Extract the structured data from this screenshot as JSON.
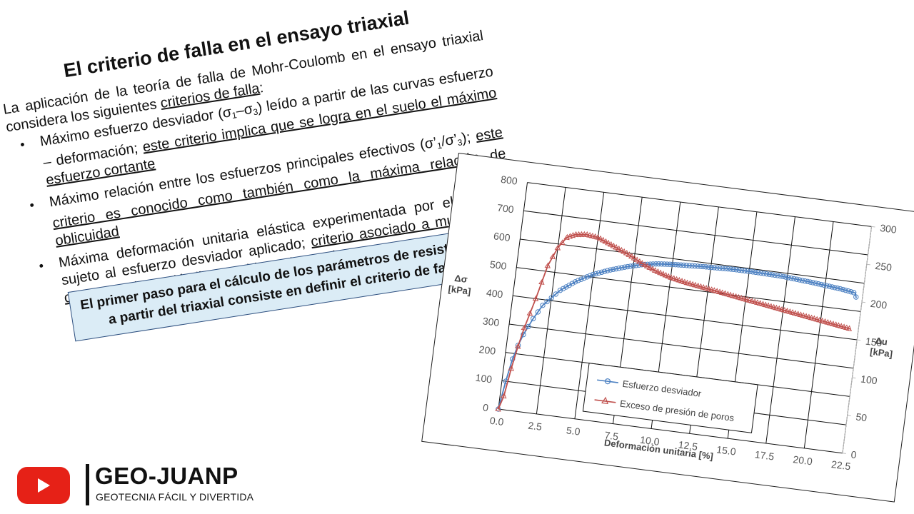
{
  "slide": {
    "title": "El criterio de falla en el ensayo triaxial",
    "intro": {
      "text": "La aplicación de la teoría de falla de Mohr-Coulomb en el ensayo triaxial considera los siguientes ",
      "underlined": "criterios de falla",
      "suffix": ":"
    },
    "bullets": [
      {
        "bullet": "•",
        "text_a": "Máximo esfuerzo desviador (σ",
        "sub1": "1",
        "text_b": "–σ",
        "sub2": "3",
        "text_c": ") leído a partir de las curvas esfuerzo – deformación; ",
        "underlined": "este criterio implica que se logra en el suelo el máximo esfuerzo cortante"
      },
      {
        "bullet": "•",
        "text_a": "Máximo relación entre los esfuerzos principales efectivos (σ’",
        "sub1": "1",
        "text_b": "/σ’",
        "sub2": "3",
        "text_c": "); ",
        "underlined": "este criterio es conocido como también como la máxima relación de oblicuidad"
      },
      {
        "bullet": "•",
        "text_a": "Máxima deformación unitaria elástica experimentada por el material sujeto al esfuerzo desviador aplicado; ",
        "underlined": "criterio asociado a muestras de comportamiento dúctil y considera el 15% ó 20%"
      }
    ],
    "callout": {
      "line1": "El primer paso para el cálculo de los parámetros de resistencia",
      "line2": "a partir del triaxial consiste en definir el criterio de falla"
    }
  },
  "chart": {
    "left_axis_label_1": "Δσ",
    "left_axis_label_2": "[kPa]",
    "right_axis_label_1": "Δu",
    "right_axis_label_2": "[kPa]",
    "x_axis_label": "Deformación unitaria [%]",
    "legend": [
      "Esfuerzo desviador",
      "Exceso de presión de poros"
    ],
    "colors": {
      "series1": "#4a7fc1",
      "series2": "#c0504d",
      "grid": "#111111"
    }
  },
  "chart_data": {
    "type": "line",
    "title": "",
    "xlabel": "Deformación unitaria [%]",
    "ylabel": "Δσ [kPa]",
    "y2label": "Δu [kPa]",
    "xlim": [
      0,
      22.5
    ],
    "ylim": [
      0,
      800
    ],
    "y2lim": [
      0,
      300
    ],
    "xticks": [
      "0.0",
      "2.5",
      "5.0",
      "7.5",
      "10.0",
      "12.5",
      "15.0",
      "17.5",
      "20.0",
      "22.5"
    ],
    "yticks": [
      "0",
      "100",
      "200",
      "300",
      "400",
      "500",
      "600",
      "700",
      "800"
    ],
    "y2ticks": [
      "0",
      "50",
      "100",
      "150",
      "200",
      "250",
      "300"
    ],
    "grid": true,
    "legend_position": "lower center (inside plot)",
    "series": [
      {
        "name": "Esfuerzo desviador",
        "axis": "left",
        "marker": "circle",
        "x": [
          0,
          0.25,
          0.5,
          0.75,
          1.0,
          1.5,
          2.0,
          2.5,
          3.0,
          4.0,
          5.0,
          6.0,
          7.0,
          8.0,
          9.0,
          10.0,
          12.0,
          14.0,
          15.0,
          17.0,
          19.0,
          21.0,
          22.0,
          22.1
        ],
        "values": [
          0,
          100,
          180,
          230,
          270,
          330,
          380,
          410,
          440,
          480,
          510,
          532,
          550,
          565,
          575,
          580,
          586,
          590,
          590,
          588,
          580,
          570,
          562,
          545
        ]
      },
      {
        "name": "Exceso de presión de poros",
        "axis": "right",
        "marker": "triangle",
        "x": [
          0,
          0.25,
          0.5,
          0.75,
          1.0,
          1.5,
          2.0,
          2.5,
          3.0,
          3.5,
          4.2,
          5.0,
          6.0,
          7.0,
          8.0,
          9.0,
          10.0,
          11.0,
          12.0,
          13.0,
          14.0,
          15.0,
          16.0,
          17.0,
          18.0,
          19.0,
          20.0,
          21.0,
          22.0
        ],
        "values": [
          0,
          18,
          55,
          85,
          110,
          150,
          195,
          220,
          235,
          240,
          242,
          240,
          232,
          224,
          214,
          206,
          200,
          196,
          193,
          190,
          187,
          184,
          181,
          178,
          175,
          172,
          169,
          166,
          163
        ]
      }
    ]
  },
  "branding": {
    "channel_name": "GEO-JUANP",
    "tagline": "GEOTECNIA FÁCIL Y DIVERTIDA",
    "youtube_color": "#e62117"
  }
}
